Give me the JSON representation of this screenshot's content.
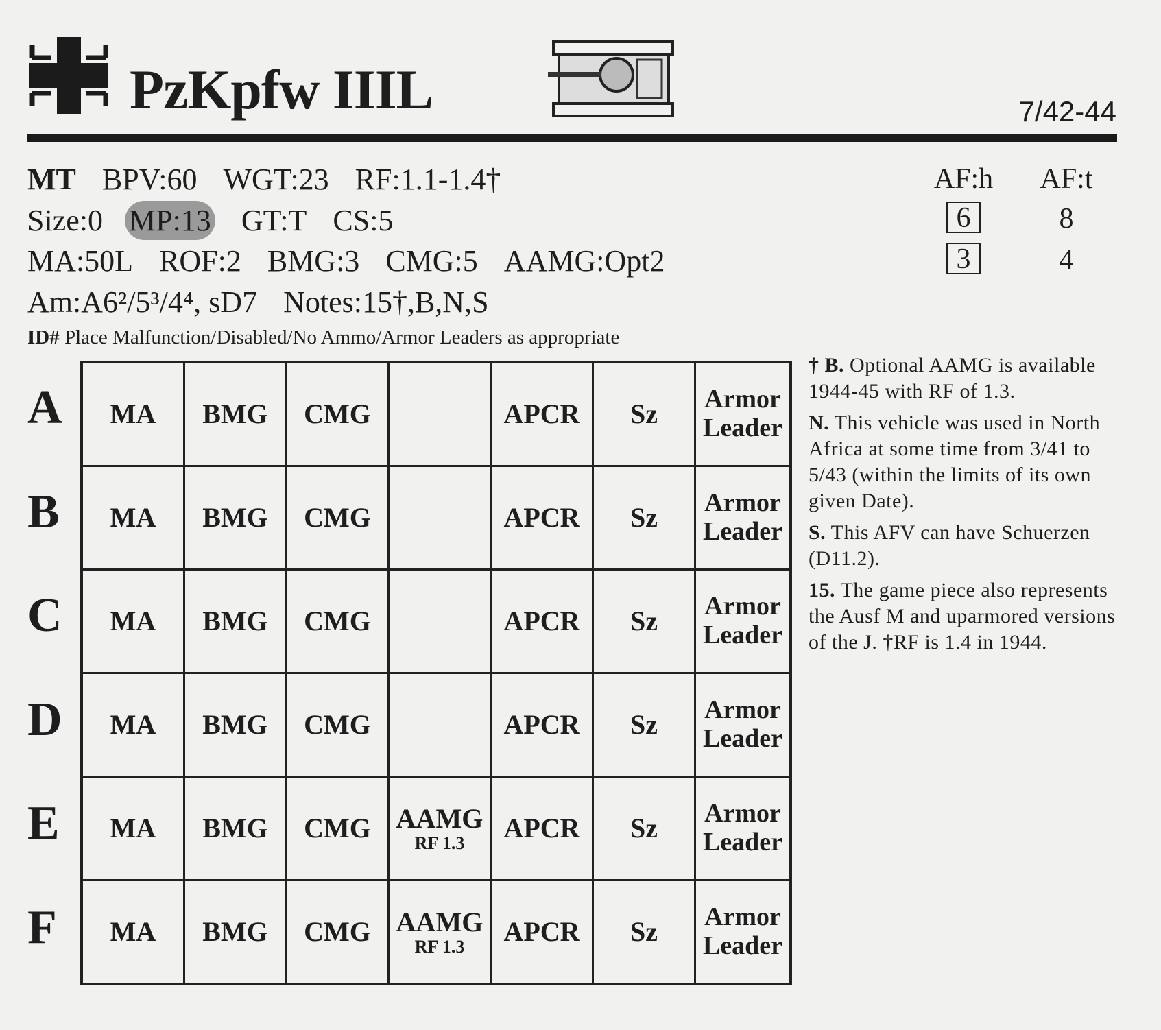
{
  "header": {
    "title": "PzKpfw IIIL",
    "date": "7/42-44",
    "nationality_icon": "balkenkreuz-icon",
    "vehicle_icon": "tank-topview-icon"
  },
  "stats": {
    "line1": [
      "MT",
      "BPV:60",
      "WGT:23",
      "RF:1.1-1.4†"
    ],
    "line2": [
      "Size:0",
      "MP:13",
      "GT:T",
      "CS:5"
    ],
    "line3": [
      "MA:50L",
      "ROF:2",
      "BMG:3",
      "CMG:5",
      "AAMG:Opt2"
    ],
    "line4_am": "Am:A6²/5³/4⁴, sD7",
    "line4_notes": "Notes:15†,B,N,S",
    "id_label": "ID#",
    "id_text": "Place Malfunction/Disabled/No Ammo/Armor Leaders as appropriate"
  },
  "armor": {
    "h_label": "AF:h",
    "t_label": "AF:t",
    "front_h": "6",
    "front_t": "8",
    "side_h": "3",
    "side_t": "4"
  },
  "grid": {
    "rows": [
      "A",
      "B",
      "C",
      "D",
      "E",
      "F"
    ],
    "cells": [
      "MA",
      "BMG",
      "CMG",
      "",
      "APCR",
      "Sz",
      "Armor Leader"
    ],
    "aamg": "AAMG",
    "aamg_rf": "RF 1.3"
  },
  "notes": [
    {
      "key": "† B.",
      "text": "Optional AAMG is available 1944-45 with RF of 1.3."
    },
    {
      "key": "N.",
      "text": "This vehicle was used in North Africa at some time from 3/41 to 5/43 (within the limits of its own given Date)."
    },
    {
      "key": "S.",
      "text": "This AFV can have Schuerzen (D11.2)."
    },
    {
      "key": "15.",
      "text": "The game piece also represents the Ausf M and uparmored versions of the J. †RF is 1.4 in 1944."
    }
  ]
}
